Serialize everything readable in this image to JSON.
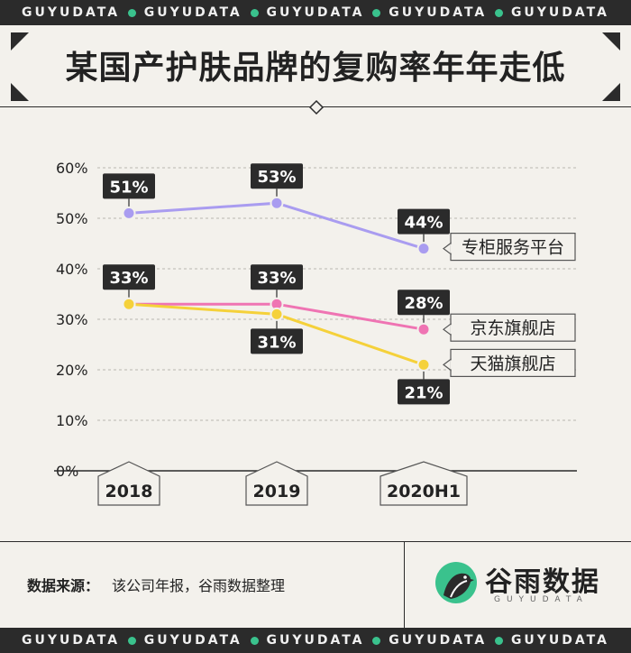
{
  "header_band": {
    "items": [
      "GUYUDATA",
      "GUYUDATA",
      "GUYUDATA",
      "GUYUDATA",
      "GUYUDATA"
    ]
  },
  "footer_band": {
    "items": [
      "GUYUDATA",
      "GUYUDATA",
      "GUYUDATA",
      "GUYUDATA",
      "GUYUDATA"
    ]
  },
  "colors": {
    "purple": "#a99cf0",
    "pink": "#ef74b3",
    "yellow": "#f5d13a",
    "accent_green": "#3ac28d",
    "dark": "#2b2b2b"
  },
  "footer": {
    "source_label": "数据来源：",
    "source_text": "该公司年报，谷雨数据整理"
  },
  "brand": {
    "name": "谷雨数据",
    "sub": "GUYUDATA",
    "logo": "bird-logo-icon"
  },
  "chart_data": {
    "type": "line",
    "title": "某国产护肤品牌的复购率年年走低",
    "categories": [
      "2018",
      "2019",
      "2020H1"
    ],
    "yticks": [
      "60%",
      "50%",
      "40%",
      "30%",
      "20%",
      "10%",
      "0%"
    ],
    "ylim": [
      0,
      60
    ],
    "grid": true,
    "series": [
      {
        "name": "专柜服务平台",
        "values": [
          51,
          53,
          44
        ],
        "labels": [
          "51%",
          "53%",
          "44%"
        ],
        "color": "#a99cf0"
      },
      {
        "name": "京东旗舰店",
        "values": [
          33,
          33,
          28
        ],
        "labels": [
          "33%",
          "33%",
          "28%"
        ],
        "color": "#ef74b3"
      },
      {
        "name": "天猫旗舰店",
        "values": [
          33,
          31,
          21
        ],
        "labels": [
          "",
          "31%",
          "21%"
        ],
        "color": "#f5d13a"
      }
    ]
  }
}
